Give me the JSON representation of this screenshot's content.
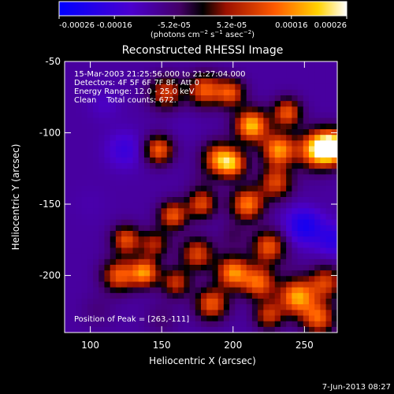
{
  "chart_data": {
    "type": "heatmap",
    "title": "Reconstructed RHESSI Image",
    "xlabel": "Heliocentric X (arcsec)",
    "ylabel": "Heliocentric Y (arcsec)",
    "xlim": [
      82,
      273
    ],
    "ylim": [
      -240,
      -50
    ],
    "x_ticks": [
      100,
      150,
      200,
      250
    ],
    "y_ticks": [
      -50,
      -100,
      -150,
      -200
    ],
    "colorbar": {
      "range": [
        -0.00026,
        0.00026
      ],
      "ticks": [
        -0.00026,
        -0.00016,
        -5.2e-05,
        5.2e-05,
        0.00016,
        0.00026
      ],
      "tick_labels": [
        "-0.00026",
        "-0.00016",
        "-5.2e-05",
        "5.2e-05",
        "0.00016",
        "0.00026"
      ]
    },
    "annotations": [
      "15-Mar-2003 21:25:56.000 to 21:27:04.000",
      "Detectors: 4F 5F 6F 7F 8F, Att 0",
      "Energy Range: 12.0 - 25.0 keV",
      "Clean    Total counts: 672."
    ],
    "peak_label": "Position of Peak = [263,-111]",
    "footer_date": "7-Jun-2013 08:27",
    "blobs": [
      {
        "x": 270,
        "y": -110,
        "v": 0.00026,
        "s": 8
      },
      {
        "x": 258,
        "y": -112,
        "v": 0.00018,
        "s": 9
      },
      {
        "x": 232,
        "y": -112,
        "v": 0.00017,
        "s": 8
      },
      {
        "x": 213,
        "y": -95,
        "v": 0.0002,
        "s": 8
      },
      {
        "x": 238,
        "y": -86,
        "v": 0.00012,
        "s": 7
      },
      {
        "x": 180,
        "y": -70,
        "v": 0.00012,
        "s": 8
      },
      {
        "x": 198,
        "y": -72,
        "v": 0.00011,
        "s": 7
      },
      {
        "x": 153,
        "y": -72,
        "v": 9e-05,
        "s": 8
      },
      {
        "x": 190,
        "y": -118,
        "v": 0.00013,
        "s": 8
      },
      {
        "x": 200,
        "y": -122,
        "v": 0.00012,
        "s": 7
      },
      {
        "x": 148,
        "y": -112,
        "v": 0.00013,
        "s": 7
      },
      {
        "x": 180,
        "y": -135,
        "v": -6e-05,
        "s": 8
      },
      {
        "x": 165,
        "y": -95,
        "v": -0.0001,
        "s": 8
      },
      {
        "x": 124,
        "y": -112,
        "v": -0.00016,
        "s": 9
      },
      {
        "x": 110,
        "y": -80,
        "v": -0.00012,
        "s": 8
      },
      {
        "x": 100,
        "y": -150,
        "v": -0.0001,
        "s": 9
      },
      {
        "x": 136,
        "y": -133,
        "v": -9e-05,
        "s": 8
      },
      {
        "x": 158,
        "y": -158,
        "v": 0.00012,
        "s": 7
      },
      {
        "x": 178,
        "y": -150,
        "v": 0.0001,
        "s": 7
      },
      {
        "x": 210,
        "y": -150,
        "v": 0.00015,
        "s": 8
      },
      {
        "x": 230,
        "y": -135,
        "v": 0.0001,
        "s": 8
      },
      {
        "x": 255,
        "y": -150,
        "v": -8e-05,
        "s": 8
      },
      {
        "x": 250,
        "y": -165,
        "v": -0.00022,
        "s": 9
      },
      {
        "x": 270,
        "y": -175,
        "v": -0.00018,
        "s": 8
      },
      {
        "x": 200,
        "y": -172,
        "v": -4e-05,
        "s": 7
      },
      {
        "x": 125,
        "y": -175,
        "v": 0.00011,
        "s": 7
      },
      {
        "x": 145,
        "y": -178,
        "v": 6e-05,
        "s": 7
      },
      {
        "x": 175,
        "y": -185,
        "v": 0.0001,
        "s": 8
      },
      {
        "x": 225,
        "y": -180,
        "v": 0.00012,
        "s": 8
      },
      {
        "x": 120,
        "y": -200,
        "v": 0.00012,
        "s": 8
      },
      {
        "x": 138,
        "y": -198,
        "v": 0.00016,
        "s": 7
      },
      {
        "x": 160,
        "y": -205,
        "v": 8e-05,
        "s": 7
      },
      {
        "x": 200,
        "y": -198,
        "v": 0.00016,
        "s": 8
      },
      {
        "x": 218,
        "y": -205,
        "v": 0.00013,
        "s": 8
      },
      {
        "x": 185,
        "y": -220,
        "v": 0.00012,
        "s": 8
      },
      {
        "x": 245,
        "y": -215,
        "v": 0.00018,
        "s": 9
      },
      {
        "x": 265,
        "y": -205,
        "v": 9e-05,
        "s": 8
      },
      {
        "x": 260,
        "y": -230,
        "v": 0.00012,
        "s": 8
      },
      {
        "x": 225,
        "y": -228,
        "v": 8e-05,
        "s": 7
      },
      {
        "x": 150,
        "y": -230,
        "v": -5e-05,
        "s": 8
      },
      {
        "x": 105,
        "y": -225,
        "v": -6e-05,
        "s": 8
      },
      {
        "x": 240,
        "y": -190,
        "v": -8e-05,
        "s": 6
      }
    ]
  }
}
